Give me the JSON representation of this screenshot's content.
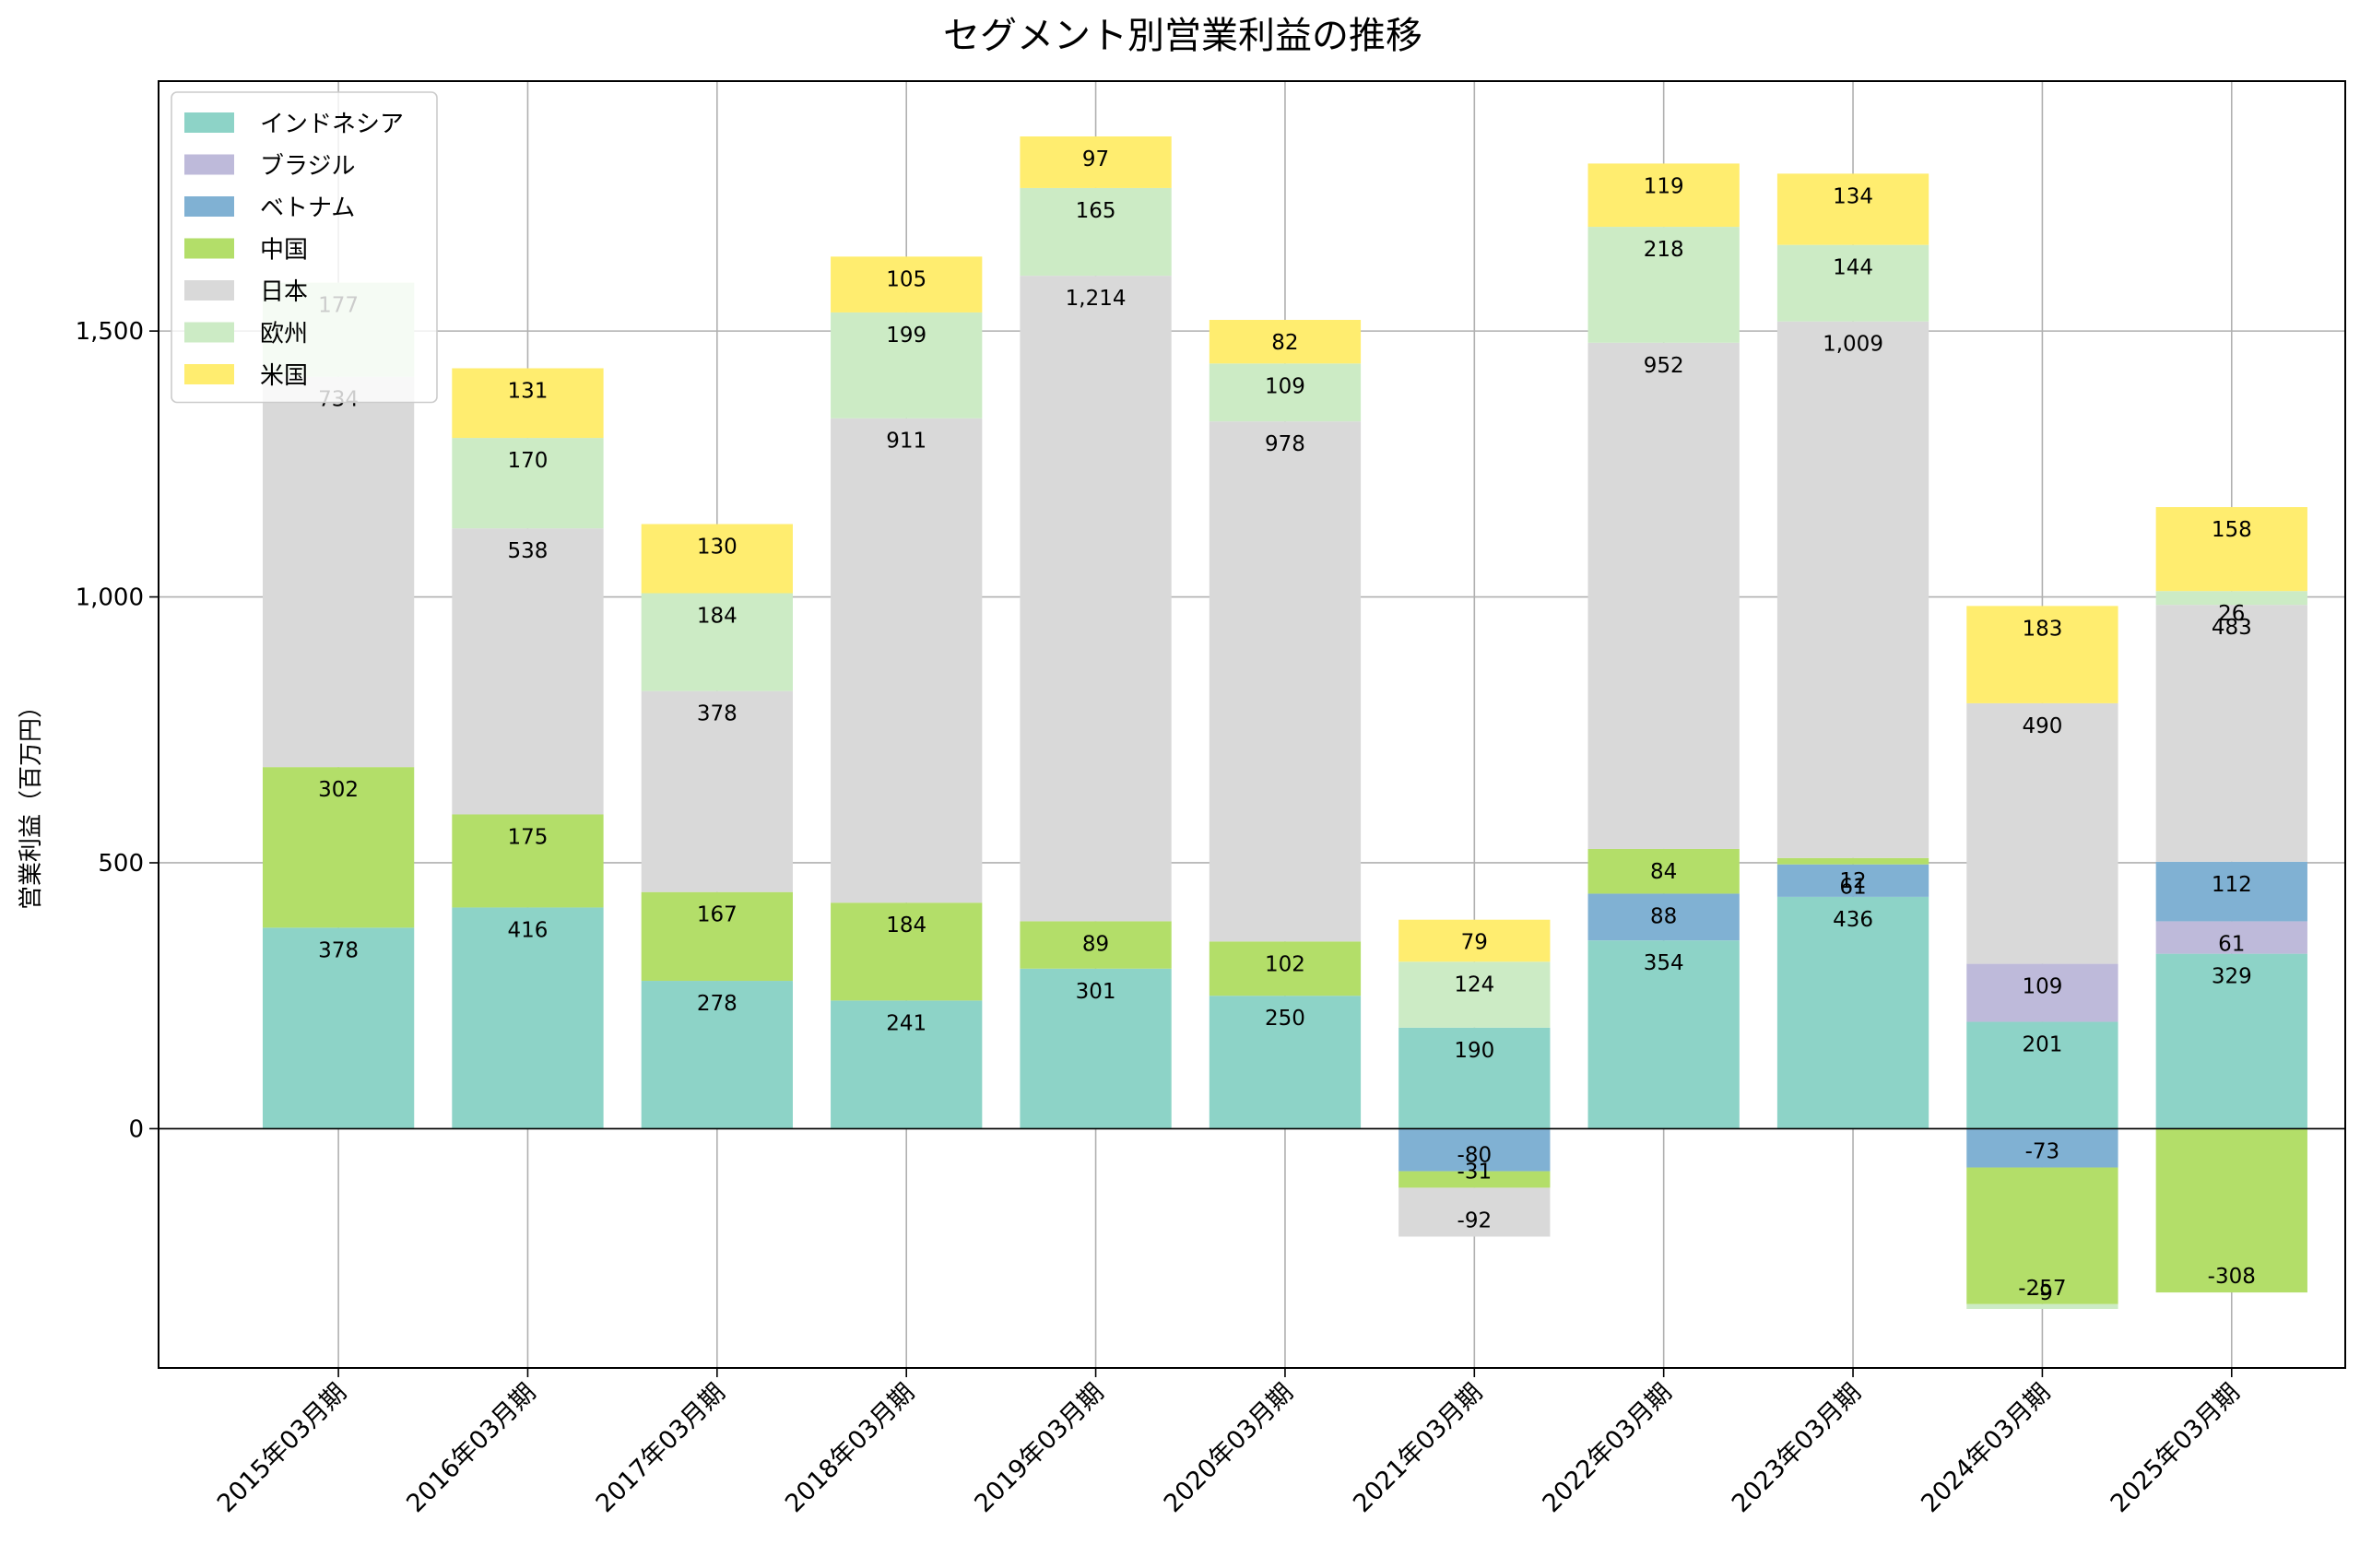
{
  "chart_data": {
    "type": "bar",
    "stacked": true,
    "title": "セグメント別営業利益の推移",
    "xlabel": "",
    "ylabel": "営業利益（百万円）",
    "ylim": [
      -450,
      1970
    ],
    "yticks": [
      0,
      500,
      1000,
      1500
    ],
    "ytick_labels": [
      "0",
      "500",
      "1,000",
      "1,500"
    ],
    "grid": true,
    "legend_position": "top-left",
    "categories": [
      "2015年03月期",
      "2016年03月期",
      "2017年03月期",
      "2018年03月期",
      "2019年03月期",
      "2020年03月期",
      "2021年03月期",
      "2022年03月期",
      "2023年03月期",
      "2024年03月期",
      "2025年03月期"
    ],
    "series": [
      {
        "name": "インドネシア",
        "color": "#8dd3c7",
        "values": [
          378,
          416,
          278,
          241,
          301,
          250,
          190,
          354,
          436,
          201,
          329
        ]
      },
      {
        "name": "ブラジル",
        "color": "#bebada",
        "values": [
          null,
          null,
          null,
          null,
          null,
          null,
          null,
          null,
          null,
          109,
          61
        ]
      },
      {
        "name": "ベトナム",
        "color": "#80b1d3",
        "values": [
          null,
          null,
          null,
          null,
          null,
          null,
          -80,
          88,
          61,
          -73,
          112
        ]
      },
      {
        "name": "中国",
        "color": "#b3de69",
        "values": [
          302,
          175,
          167,
          184,
          89,
          102,
          -31,
          84,
          12,
          -257,
          -308
        ]
      },
      {
        "name": "日本",
        "color": "#d9d9d9",
        "values": [
          734,
          538,
          378,
          911,
          1214,
          978,
          -92,
          952,
          1009,
          490,
          483
        ]
      },
      {
        "name": "欧州",
        "color": "#ccebc5",
        "values": [
          177,
          170,
          184,
          199,
          165,
          109,
          124,
          218,
          144,
          -9,
          26
        ]
      },
      {
        "name": "米国",
        "color": "#ffed6f",
        "values": [
          null,
          131,
          130,
          105,
          97,
          82,
          79,
          119,
          134,
          183,
          158
        ]
      }
    ]
  }
}
